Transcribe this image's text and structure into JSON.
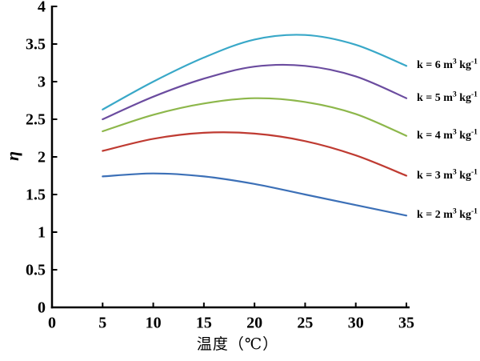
{
  "figure": {
    "background": "#ffffff",
    "axis_color": "#000000",
    "text_color": "#000000"
  },
  "chart_data": {
    "type": "line",
    "title": "",
    "xlabel": "温度（℃）",
    "ylabel": "η",
    "xlim": [
      0,
      35
    ],
    "ylim": [
      0,
      4
    ],
    "x_ticks": [
      0,
      5,
      10,
      15,
      20,
      25,
      30,
      35
    ],
    "x_tick_labels": [
      "0",
      "5",
      "10",
      "15",
      "20",
      "25",
      "30",
      "35"
    ],
    "y_ticks": [
      0,
      0.5,
      1,
      1.5,
      2,
      2.5,
      3,
      3.5,
      4
    ],
    "y_tick_labels": [
      "0",
      "0.5",
      "1",
      "1.5",
      "2",
      "2.5",
      "3",
      "3.5",
      "4"
    ],
    "grid": false,
    "legend_position": "right of curve ends",
    "x": [
      5,
      10,
      15,
      20,
      25,
      30,
      35
    ],
    "series": [
      {
        "key": "k6",
        "label_text": "k = 6 m³ kg⁻¹",
        "label_parts": {
          "pre": "k = 6 m",
          "sup1": "3",
          "mid": " kg",
          "sup2": "-1"
        },
        "color": "#39A8C8",
        "values": [
          2.63,
          3.0,
          3.32,
          3.56,
          3.62,
          3.49,
          3.21
        ]
      },
      {
        "key": "k5",
        "label_text": "k = 5 m³ kg⁻¹",
        "label_parts": {
          "pre": "k = 5 m",
          "sup1": "3",
          "mid": " kg",
          "sup2": "-1"
        },
        "color": "#6B4C9F",
        "values": [
          2.5,
          2.8,
          3.04,
          3.2,
          3.21,
          3.07,
          2.78
        ]
      },
      {
        "key": "k4",
        "label_text": "k = 4 m³ kg⁻¹",
        "label_parts": {
          "pre": "k = 4 m",
          "sup1": "3",
          "mid": " kg",
          "sup2": "-1"
        },
        "color": "#8DB74B",
        "values": [
          2.34,
          2.56,
          2.71,
          2.78,
          2.73,
          2.57,
          2.28
        ]
      },
      {
        "key": "k3",
        "label_text": "k = 3 m³ kg⁻¹",
        "label_parts": {
          "pre": "k = 3 m",
          "sup1": "3",
          "mid": " kg",
          "sup2": "-1"
        },
        "color": "#BF3B32",
        "values": [
          2.08,
          2.24,
          2.32,
          2.31,
          2.21,
          2.02,
          1.75
        ]
      },
      {
        "key": "k2",
        "label_text": "k = 2 m³ kg⁻¹",
        "label_parts": {
          "pre": "k = 2 m",
          "sup1": "3",
          "mid": " kg",
          "sup2": "-1"
        },
        "color": "#3C70B7",
        "values": [
          1.74,
          1.78,
          1.74,
          1.64,
          1.5,
          1.36,
          1.22
        ]
      }
    ]
  }
}
